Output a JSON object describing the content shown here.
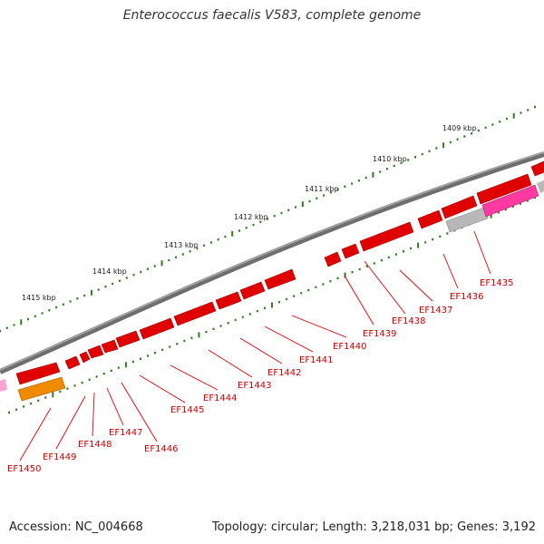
{
  "title": "Enterococcus faecalis V583, complete genome",
  "footer": {
    "accession": "Accession: NC_004668",
    "summary": "Topology: circular; Length: 3,218,031 bp; Genes: 3,192"
  },
  "colors": {
    "backbone": "#808080",
    "tick": "#2e7d1e",
    "gene_forward": "#e00000",
    "gene_label": "#cc0000",
    "connector": "#e00000",
    "orange_gene": "#f08a00",
    "pink_gene": "#ff3aa0",
    "gray_gene": "#b8b8b8"
  },
  "scale_labels": [
    "1409 kbp",
    "1410 kbp",
    "1411 kbp",
    "1412 kbp",
    "1413 kbp",
    "1414 kbp",
    "1415 kbp"
  ],
  "gene_labels": [
    "EF1435",
    "EF1436",
    "EF1437",
    "EF1438",
    "EF1439",
    "EF1440",
    "EF1441",
    "EF1442",
    "EF1443",
    "EF1444",
    "EF1445",
    "EF1446",
    "EF1447",
    "EF1448",
    "EF1449",
    "EF1450"
  ]
}
